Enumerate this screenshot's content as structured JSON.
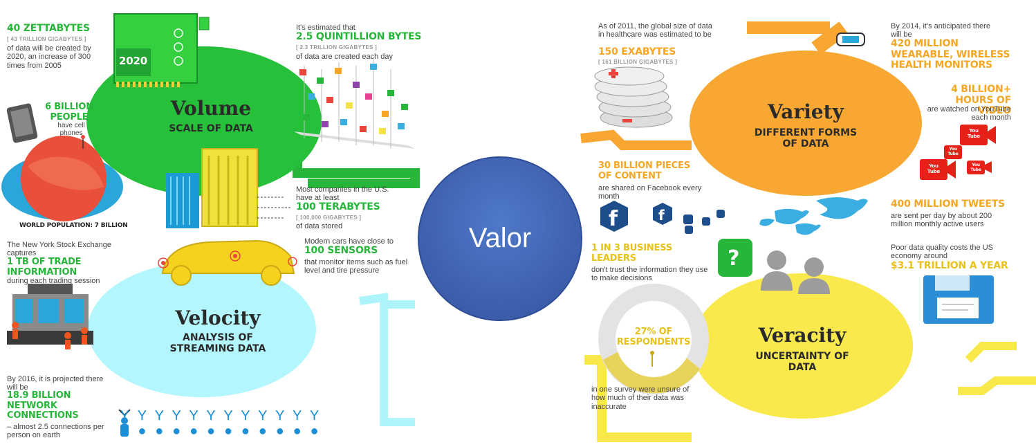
{
  "center": {
    "label": "Valor"
  },
  "volume": {
    "title": "Volume",
    "subtitle": "SCALE OF DATA",
    "zetta": {
      "big": "40 ZETTABYTES",
      "small": "[ 43 TRILLION GIGABYTES ]",
      "desc": "of data will be created by 2020, an increase of 300 times from 2005"
    },
    "year_2020": "2020",
    "year_2005": "2005",
    "phones": {
      "big": "6 BILLION PEOPLE",
      "desc": "have cell phones"
    },
    "world": "WORLD POPULATION: 7 BILLION",
    "bytes": {
      "intro": "It's estimated that",
      "big": "2.5 QUINTILLION BYTES",
      "small": "[ 2.3 TRILLION GIGABYTES ]",
      "desc": "of data are created each day"
    },
    "tera": {
      "intro": "Most companies in the U.S. have at least",
      "big": "100 TERABYTES",
      "small": "[ 100,000 GIGABYTES ]",
      "desc": "of data stored"
    }
  },
  "velocity": {
    "title": "Velocity",
    "subtitle": "ANALYSIS OF STREAMING DATA",
    "nyse": {
      "intro": "The New York Stock Exchange captures",
      "big": "1 TB OF TRADE INFORMATION",
      "desc": "during each trading session"
    },
    "sensors": {
      "intro": "Modern cars have close to",
      "big": "100 SENSORS",
      "desc": "that monitor items such as fuel level and tire pressure"
    },
    "network": {
      "intro": "By 2016, it is projected there will be",
      "big": "18.9 BILLION NETWORK CONNECTIONS",
      "desc": "– almost 2.5 connections per person on earth"
    }
  },
  "variety": {
    "title": "Variety",
    "subtitle": "DIFFERENT FORMS OF DATA",
    "health": {
      "intro": "As of 2011, the global size of data in healthcare was estimated to be",
      "big": "150 EXABYTES",
      "small": "[ 161 BILLION GIGABYTES ]"
    },
    "wearable": {
      "intro": "By 2014, it's anticipated there will be",
      "big": "420 MILLION WEARABLE, WIRELESS HEALTH MONITORS"
    },
    "video": {
      "big": "4 BILLION+ HOURS OF VIDEO",
      "desc": "are watched on YouTube each month"
    },
    "facebook": {
      "big": "30 BILLION PIECES OF CONTENT",
      "desc": "are shared on Facebook every month"
    },
    "tweets": {
      "big": "400 MILLION TWEETS",
      "desc": "are sent per day by about 200 million monthly active users"
    },
    "youtube_label": "You Tube"
  },
  "veracity": {
    "title": "Veracity",
    "subtitle": "UNCERTAINTY OF DATA",
    "leaders": {
      "big": "1 IN 3 BUSINESS LEADERS",
      "desc": "don't trust the information they use to make decisions"
    },
    "quality": {
      "intro": "Poor data quality costs the US economy around",
      "big": "$3.1 TRILLION A YEAR"
    },
    "survey": {
      "big": "27% OF RESPONDENTS",
      "desc": "in one survey were unsure of how much of their data was inaccurate",
      "percent": 27
    }
  },
  "colors": {
    "green": "#27b63a",
    "cyan": "#aef4fb",
    "orange": "#f7a731",
    "yellow": "#f8e84a",
    "blue": "#3f63b5"
  }
}
